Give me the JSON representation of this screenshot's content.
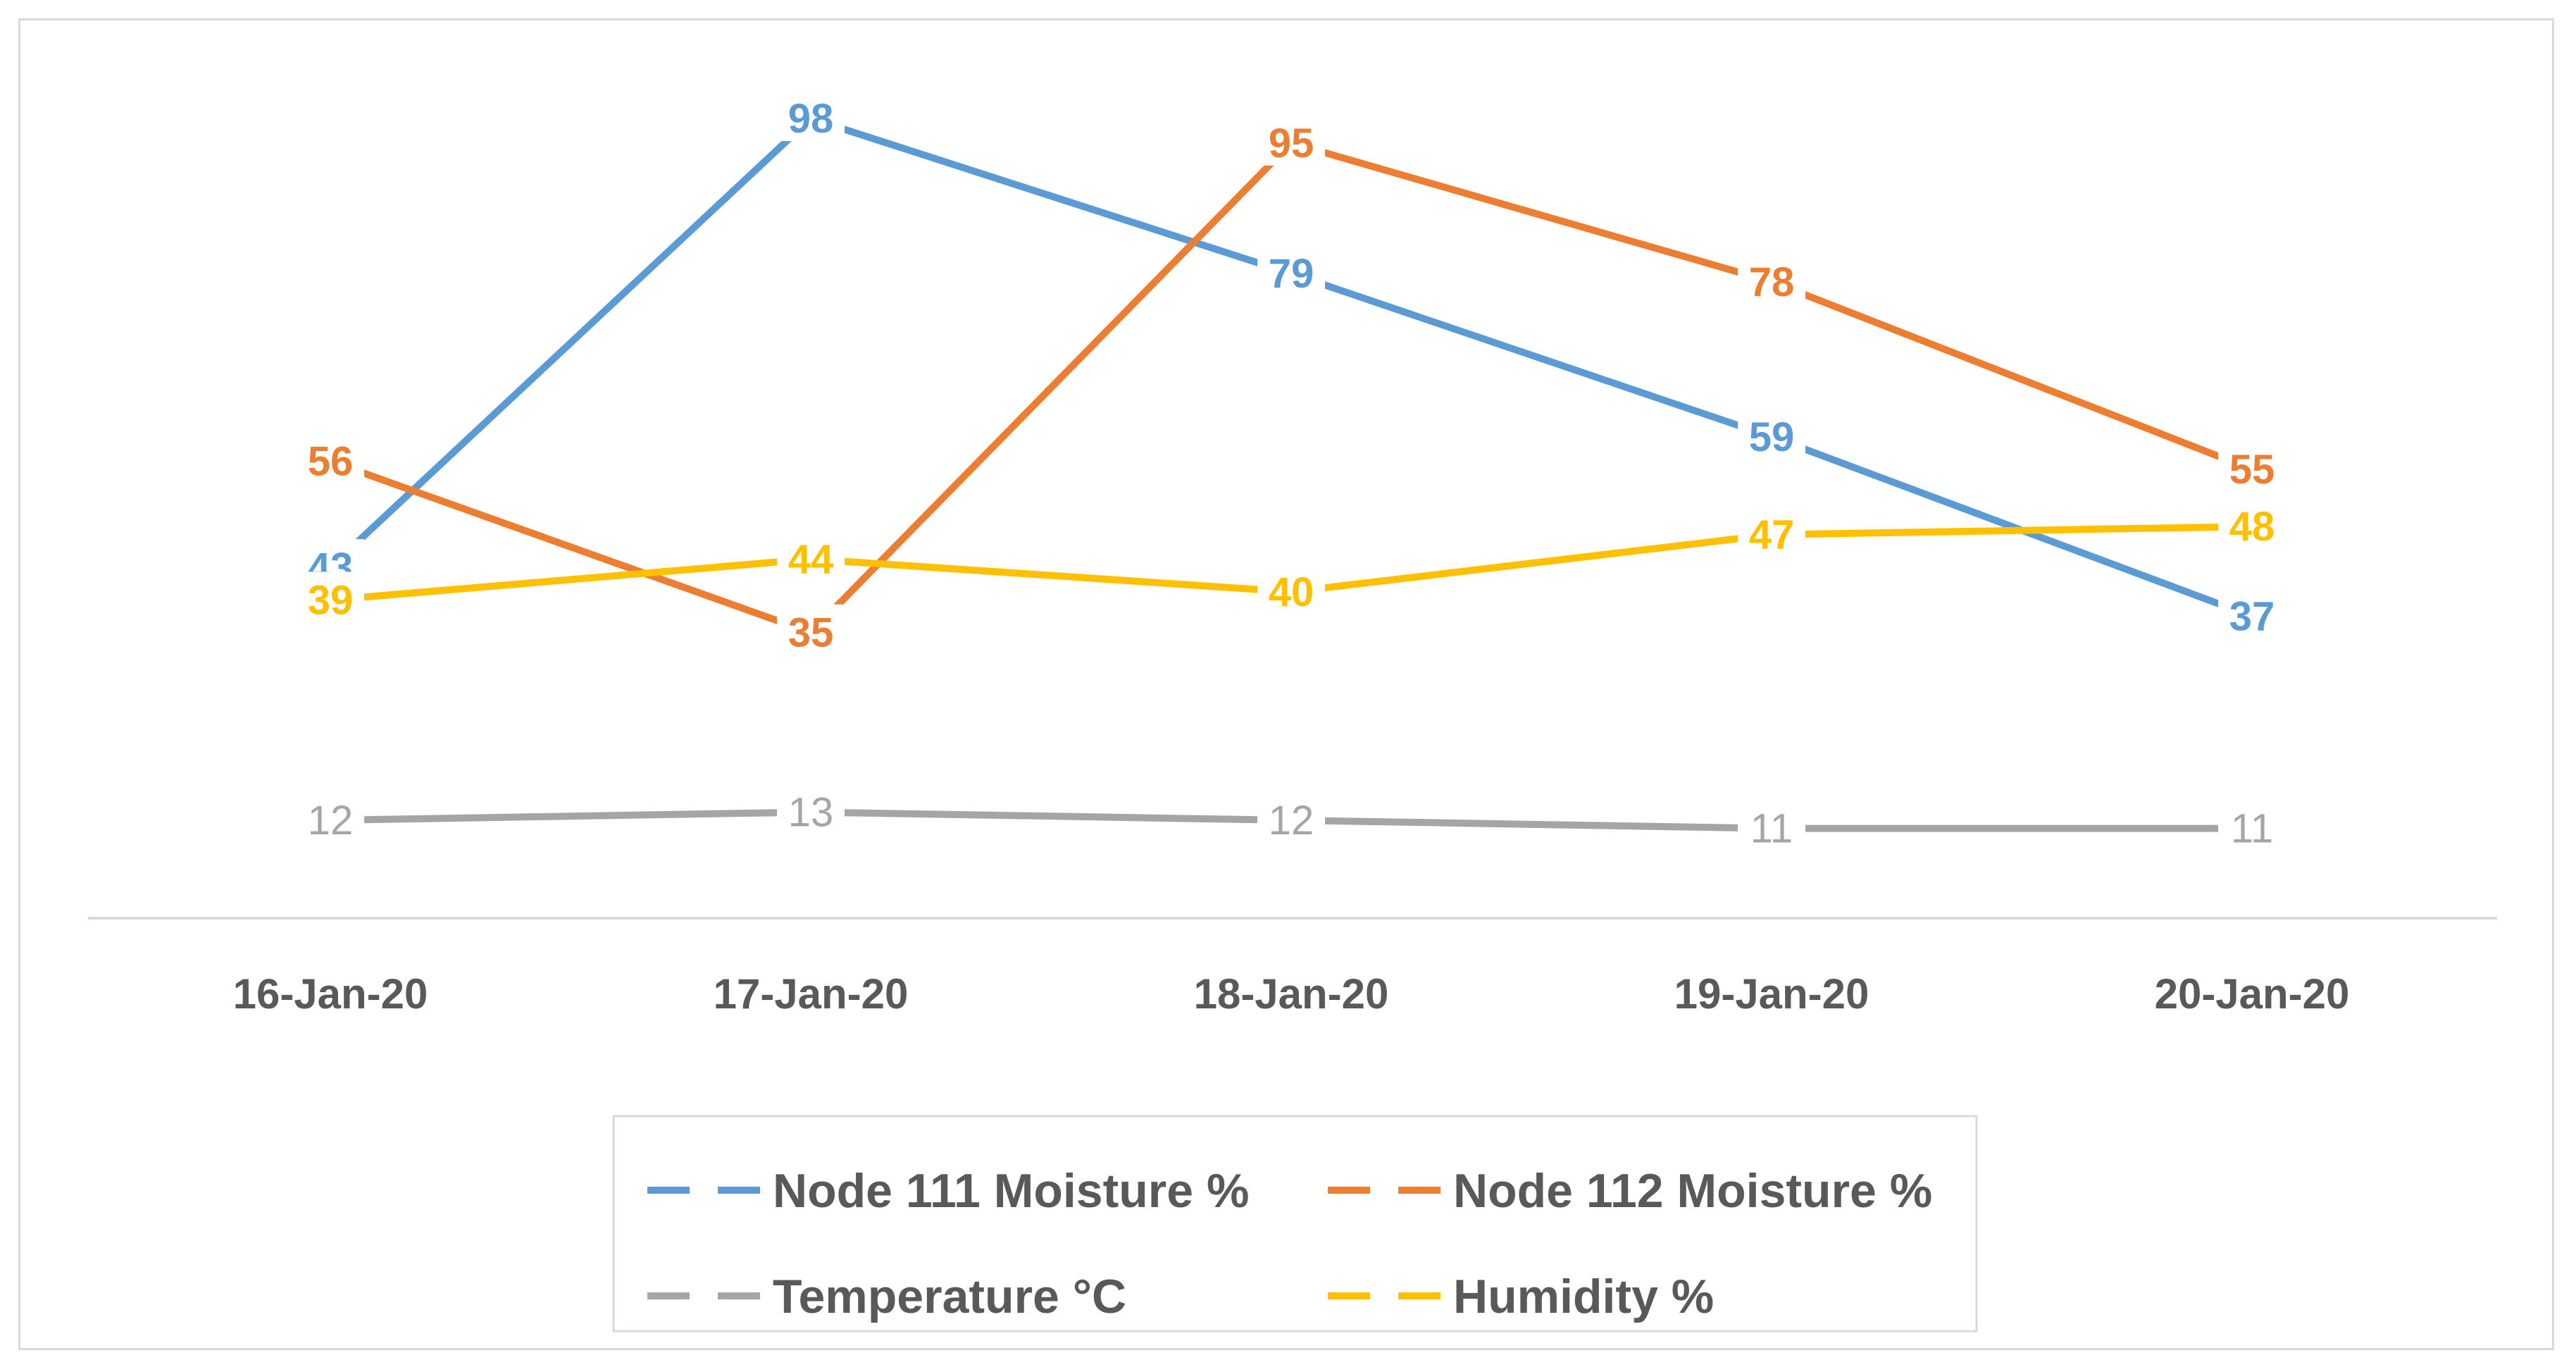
{
  "chart_data": {
    "type": "line",
    "title": "",
    "xlabel": "",
    "ylabel": "",
    "ylim": [
      0,
      110
    ],
    "grid": false,
    "legend_position": "bottom",
    "categories": [
      "16-Jan-20",
      "17-Jan-20",
      "18-Jan-20",
      "19-Jan-20",
      "20-Jan-20"
    ],
    "series": [
      {
        "name": "Node 111 Moisture %",
        "color": "#5b9bd5",
        "values": [
          43,
          98,
          79,
          59,
          37
        ],
        "label_bold": true
      },
      {
        "name": "Node 112 Moisture  %",
        "color": "#ed7d31",
        "values": [
          56,
          35,
          95,
          78,
          55
        ],
        "label_bold": true
      },
      {
        "name": "Temperature °C",
        "color": "#a5a5a5",
        "values": [
          12,
          13,
          12,
          11,
          11
        ],
        "label_bold": false
      },
      {
        "name": "Humidity %",
        "color": "#ffc000",
        "values": [
          39,
          44,
          40,
          47,
          48
        ],
        "label_bold": true
      }
    ]
  }
}
